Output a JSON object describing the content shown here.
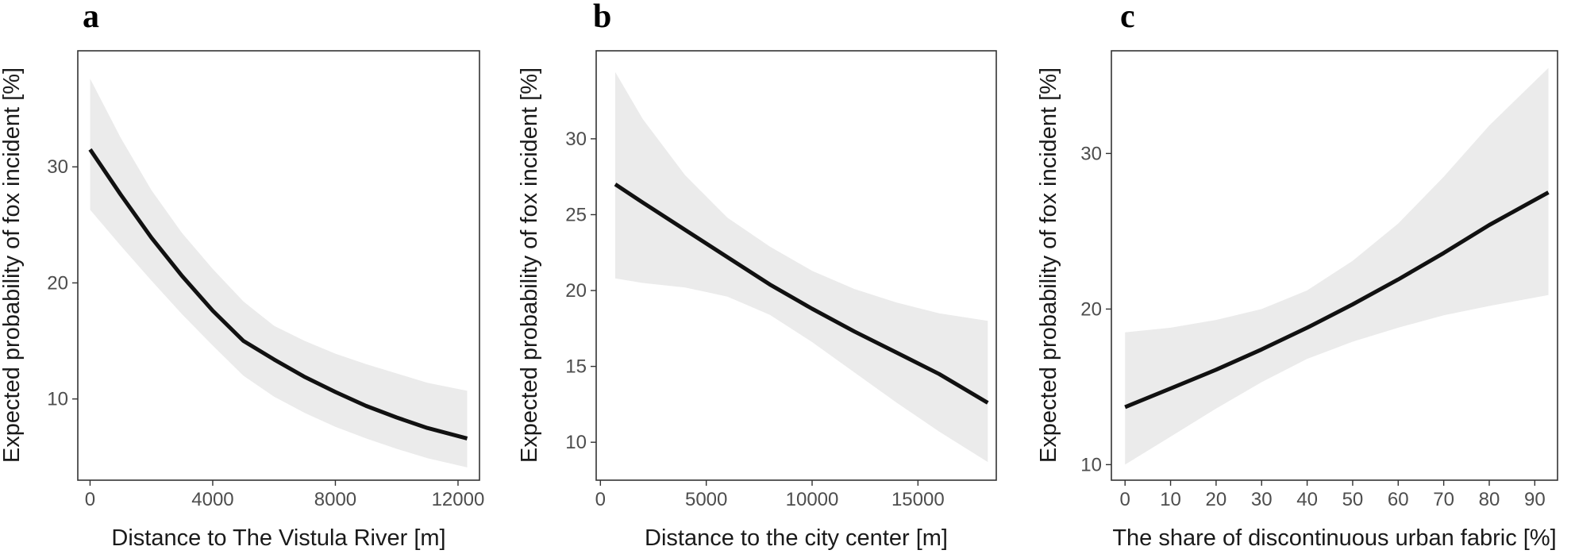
{
  "chart_data": [
    {
      "type": "line",
      "panel": "a",
      "title": "",
      "xlabel": "Distance to The Vistula River [m]",
      "ylabel": "Expected probability of fox incident [%]",
      "xlim": [
        -400,
        12700
      ],
      "ylim": [
        3,
        40
      ],
      "xticks": [
        0,
        4000,
        8000,
        12000
      ],
      "yticks": [
        10,
        20,
        30
      ],
      "xtick_labels": [
        "0",
        "4000",
        "8000",
        "12000"
      ],
      "ytick_labels": [
        "10",
        "20",
        "30"
      ],
      "series": [
        {
          "name": "Expected probability",
          "x": [
            0,
            1000,
            2000,
            3000,
            4000,
            5000,
            6000,
            7000,
            8000,
            9000,
            10000,
            11000,
            12300
          ],
          "y": [
            31.5,
            27.6,
            23.9,
            20.6,
            17.6,
            15.0,
            13.4,
            11.9,
            10.6,
            9.4,
            8.4,
            7.5,
            6.6
          ],
          "lower": [
            26.3,
            23.2,
            20.2,
            17.3,
            14.6,
            12.0,
            10.2,
            8.8,
            7.6,
            6.6,
            5.7,
            4.9,
            4.1
          ],
          "upper": [
            37.6,
            32.5,
            28.0,
            24.3,
            21.2,
            18.4,
            16.3,
            15.0,
            13.9,
            13.0,
            12.2,
            11.4,
            10.7
          ]
        }
      ]
    },
    {
      "type": "line",
      "panel": "b",
      "title": "",
      "xlabel": "Distance to the city center [m]",
      "ylabel": "Expected probability of fox incident [%]",
      "xlim": [
        -200,
        18700
      ],
      "ylim": [
        7.5,
        35.8
      ],
      "xticks": [
        0,
        5000,
        10000,
        15000
      ],
      "yticks": [
        10,
        15,
        20,
        25,
        30
      ],
      "xtick_labels": [
        "0",
        "5000",
        "10000",
        "15000"
      ],
      "ytick_labels": [
        "10",
        "15",
        "20",
        "25",
        "30"
      ],
      "series": [
        {
          "name": "Expected probability",
          "x": [
            700,
            2000,
            4000,
            6000,
            8000,
            10000,
            12000,
            14000,
            16000,
            18300
          ],
          "y": [
            27.0,
            25.8,
            24.0,
            22.2,
            20.4,
            18.8,
            17.3,
            15.9,
            14.5,
            12.6
          ],
          "lower": [
            20.8,
            20.5,
            20.2,
            19.6,
            18.4,
            16.6,
            14.6,
            12.6,
            10.7,
            8.7
          ],
          "upper": [
            34.4,
            31.3,
            27.6,
            24.8,
            22.9,
            21.3,
            20.1,
            19.2,
            18.5,
            18.0
          ]
        }
      ]
    },
    {
      "type": "line",
      "panel": "c",
      "title": "",
      "xlabel": "The share of discontinuous urban fabric [%]",
      "ylabel": "Expected probability of fox incident [%]",
      "xlim": [
        -3,
        95
      ],
      "ylim": [
        9,
        36.6
      ],
      "xticks": [
        0,
        10,
        20,
        30,
        40,
        50,
        60,
        70,
        80,
        90
      ],
      "yticks": [
        10,
        20,
        30
      ],
      "xtick_labels": [
        "0",
        "10",
        "20",
        "30",
        "40",
        "50",
        "60",
        "70",
        "80",
        "90"
      ],
      "ytick_labels": [
        "10",
        "20",
        "30"
      ],
      "series": [
        {
          "name": "Expected probability",
          "x": [
            0,
            10,
            20,
            30,
            40,
            50,
            60,
            70,
            80,
            93
          ],
          "y": [
            13.7,
            14.9,
            16.1,
            17.4,
            18.8,
            20.3,
            21.9,
            23.6,
            25.4,
            27.5
          ],
          "lower": [
            10.0,
            11.8,
            13.6,
            15.3,
            16.8,
            17.9,
            18.8,
            19.6,
            20.2,
            20.9
          ],
          "upper": [
            18.5,
            18.8,
            19.3,
            20.0,
            21.2,
            23.1,
            25.5,
            28.5,
            31.8,
            35.5
          ]
        }
      ]
    }
  ]
}
